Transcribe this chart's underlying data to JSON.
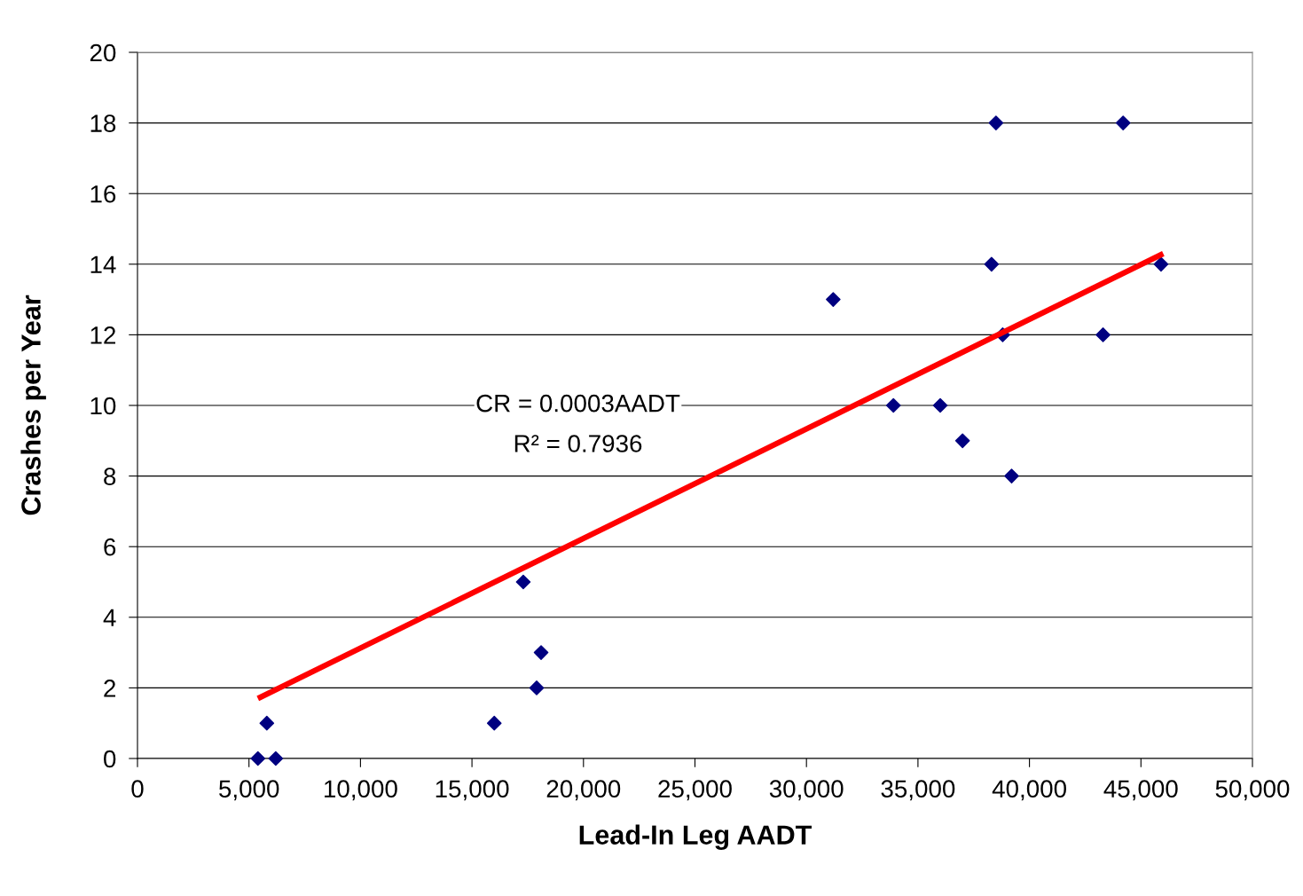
{
  "chart_data": {
    "type": "scatter",
    "xlabel": "Lead-In Leg AADT",
    "ylabel": "Crashes per Year",
    "xlim": [
      0,
      50000
    ],
    "xticks": [
      {
        "value": 0,
        "label": "0"
      },
      {
        "value": 5000,
        "label": "5,000"
      },
      {
        "value": 10000,
        "label": "10,000"
      },
      {
        "value": 15000,
        "label": "15,000"
      },
      {
        "value": 20000,
        "label": "20,000"
      },
      {
        "value": 25000,
        "label": "25,000"
      },
      {
        "value": 30000,
        "label": "30,000"
      },
      {
        "value": 35000,
        "label": "35,000"
      },
      {
        "value": 40000,
        "label": "40,000"
      },
      {
        "value": 45000,
        "label": "45,000"
      },
      {
        "value": 50000,
        "label": "50,000"
      }
    ],
    "ylim": [
      0,
      20
    ],
    "yticks": [
      0,
      2,
      4,
      6,
      8,
      10,
      12,
      14,
      16,
      18,
      20
    ],
    "grid": "y",
    "series": [
      {
        "marker": "diamond",
        "color": "#000080",
        "x": [
          5400,
          5800,
          6200,
          16000,
          17300,
          17900,
          18100,
          31200,
          33900,
          36000,
          37000,
          38300,
          38500,
          38800,
          39200,
          43300,
          44200,
          45900
        ],
        "values": [
          0,
          1,
          0,
          1,
          5,
          2,
          3,
          13,
          10,
          10,
          9,
          14,
          18,
          12,
          8,
          12,
          18,
          14
        ]
      },
      {
        "type": "line",
        "marker": "none",
        "color": "#ff0000",
        "x": [
          5400,
          46000
        ],
        "values": [
          1.7,
          14.3
        ]
      }
    ],
    "annotations": [
      "CR = 0.0003AADT",
      "R² = 0.7936"
    ]
  }
}
